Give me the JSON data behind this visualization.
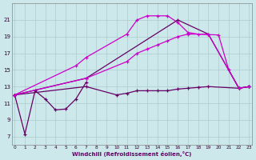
{
  "xlabel": "Windchill (Refroidissement éolien,°C)",
  "background_color": "#cce8ea",
  "grid_color": "#aacccc",
  "line_color_bright": "#cc00cc",
  "line_color_dark": "#660066",
  "x_ticks": [
    0,
    1,
    2,
    3,
    4,
    5,
    6,
    7,
    8,
    9,
    10,
    11,
    12,
    13,
    14,
    15,
    16,
    17,
    18,
    19,
    20,
    21,
    22,
    23
  ],
  "y_ticks": [
    7,
    9,
    11,
    13,
    15,
    17,
    19,
    21
  ],
  "ylim": [
    6.0,
    23.0
  ],
  "xlim": [
    -0.3,
    23.3
  ],
  "series": [
    {
      "color": "dark",
      "points": [
        [
          0,
          12
        ],
        [
          1,
          7.3
        ],
        [
          2,
          12.5
        ],
        [
          3,
          11.5
        ],
        [
          4,
          10.2
        ],
        [
          5,
          10.3
        ],
        [
          6,
          11.5
        ],
        [
          7,
          13.5
        ]
      ]
    },
    {
      "color": "bright",
      "points": [
        [
          0,
          12
        ],
        [
          6,
          15.5
        ],
        [
          7,
          16.5
        ],
        [
          11,
          19.3
        ],
        [
          12,
          21.0
        ],
        [
          13,
          21.5
        ],
        [
          14,
          21.5
        ],
        [
          15,
          21.5
        ],
        [
          16,
          20.7
        ],
        [
          17,
          19.5
        ],
        [
          18,
          19.3
        ],
        [
          20,
          19.2
        ],
        [
          21,
          15.0
        ],
        [
          22,
          12.8
        ],
        [
          23,
          13.0
        ]
      ]
    },
    {
      "color": "dark",
      "points": [
        [
          0,
          12
        ],
        [
          7,
          14.0
        ],
        [
          16,
          21.0
        ],
        [
          19,
          19.3
        ],
        [
          22,
          12.8
        ],
        [
          23,
          13.0
        ]
      ]
    },
    {
      "color": "dark",
      "points": [
        [
          0,
          12
        ],
        [
          7,
          13.0
        ],
        [
          10,
          12.0
        ],
        [
          11,
          12.2
        ],
        [
          12,
          12.5
        ],
        [
          13,
          12.5
        ],
        [
          14,
          12.5
        ],
        [
          15,
          12.5
        ],
        [
          16,
          12.7
        ],
        [
          17,
          12.8
        ],
        [
          18,
          12.9
        ],
        [
          19,
          13.0
        ],
        [
          22,
          12.8
        ],
        [
          23,
          13.0
        ]
      ]
    },
    {
      "color": "bright",
      "points": [
        [
          0,
          12
        ],
        [
          7,
          14.0
        ],
        [
          11,
          16.0
        ],
        [
          12,
          17.0
        ],
        [
          13,
          17.5
        ],
        [
          14,
          18.0
        ],
        [
          15,
          18.5
        ],
        [
          16,
          19.0
        ],
        [
          17,
          19.3
        ],
        [
          19,
          19.3
        ],
        [
          22,
          12.8
        ],
        [
          23,
          13.0
        ]
      ]
    }
  ]
}
